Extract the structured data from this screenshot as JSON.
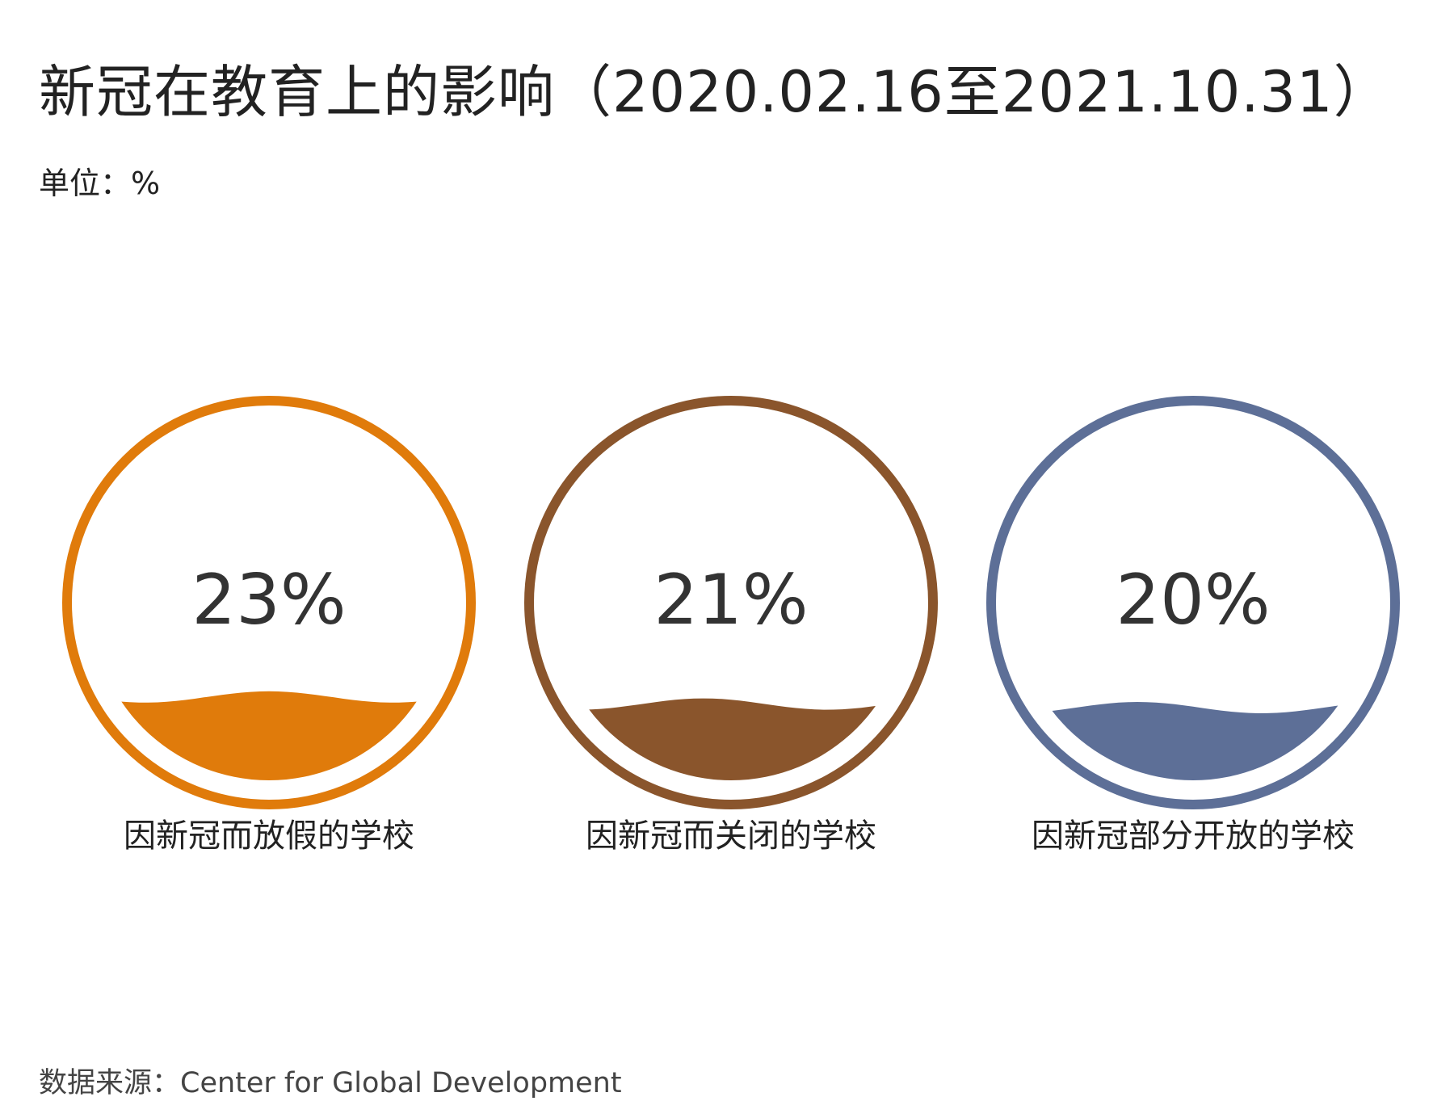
{
  "title": "新冠在教育上的影响（2020.02.16至2021.10.31）",
  "unit_label": "单位：%",
  "source": "数据来源：Center for Global Development",
  "colors": {
    "text": "#333333",
    "series": [
      "#e07b0b",
      "#8a552c",
      "#5d6f97"
    ]
  },
  "chart_data": {
    "type": "pie",
    "title": "新冠在教育上的影响（2020.02.16至2021.10.31）",
    "unit": "%",
    "categories": [
      "因新冠而放假的学校",
      "因新冠而关闭的学校",
      "因新冠部分开放的学校"
    ],
    "values": [
      23,
      21,
      20
    ],
    "value_labels": [
      "23%",
      "21%",
      "20%"
    ],
    "series_colors": [
      "#e07b0b",
      "#8a552c",
      "#5d6f97"
    ],
    "legend": "none",
    "grid": false
  }
}
